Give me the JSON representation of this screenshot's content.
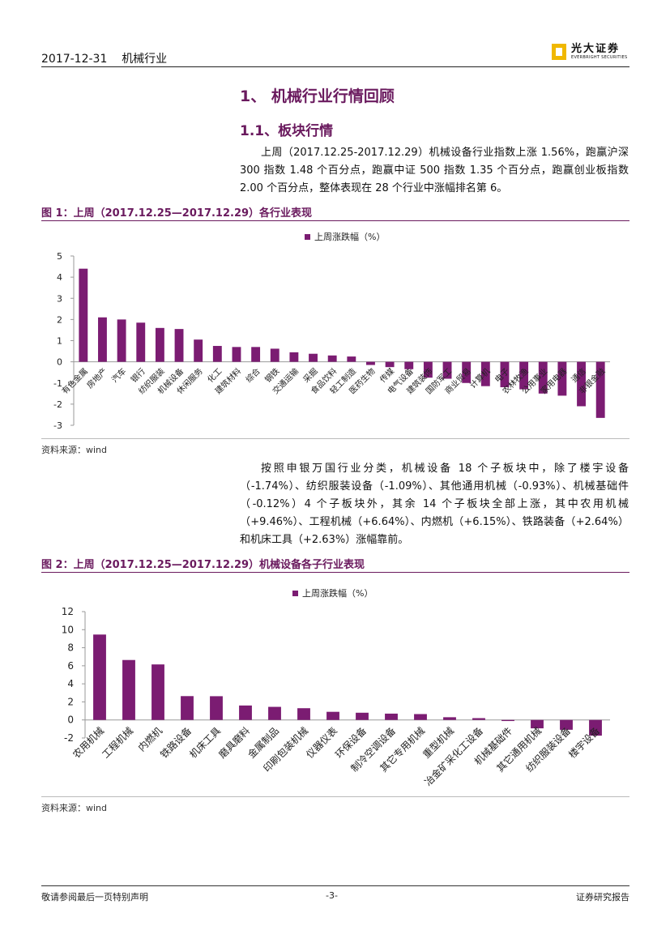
{
  "header": {
    "date": "2017-12-31",
    "industry": "机械行业",
    "logo_cn": "光大证券",
    "logo_en": "EVERBRIGHT SECURITIES"
  },
  "section_title": "1、 机械行业行情回顾",
  "subsection_title": "1.1、板块行情",
  "paragraph1": "上周（2017.12.25-2017.12.29）机械设备行业指数上涨 1.56%，跑赢沪深 300 指数 1.48 个百分点，跑赢中证 500 指数 1.35 个百分点，跑赢创业板指数 2.00 个百分点，整体表现在 28 个行业中涨幅排名第 6。",
  "figure1": {
    "title": "图 1：上周（2017.12.25—2017.12.29）各行业表现",
    "source": "资料来源：wind",
    "chart_data": {
      "type": "bar",
      "series": [
        {
          "name": "上周涨跌幅（%）",
          "color": "#7b1c72"
        }
      ],
      "categories": [
        "有色金属",
        "房地产",
        "汽车",
        "银行",
        "纺织服装",
        "机械设备",
        "休闲服务",
        "化工",
        "建筑材料",
        "综合",
        "钢铁",
        "交通运输",
        "采掘",
        "食品饮料",
        "轻工制造",
        "医药生物",
        "传媒",
        "电气设备",
        "建筑装饰",
        "国防军工",
        "商业贸易",
        "计算机",
        "电子",
        "农林牧渔",
        "公用事业",
        "家用电器",
        "通信",
        "非银金融"
      ],
      "values": [
        4.4,
        2.1,
        2.0,
        1.85,
        1.6,
        1.55,
        1.05,
        0.75,
        0.7,
        0.7,
        0.62,
        0.45,
        0.38,
        0.3,
        0.25,
        -0.15,
        -0.25,
        -0.35,
        -0.75,
        -0.8,
        -1.0,
        -1.15,
        -1.2,
        -1.3,
        -1.5,
        -1.6,
        -2.1,
        -2.65
      ],
      "ylim": [
        -3,
        5
      ],
      "yticks": [
        "-3",
        "-2",
        "-1",
        "0",
        "1",
        "2",
        "3",
        "4",
        "5"
      ]
    }
  },
  "paragraph2": "按照申银万国行业分类，机械设备 18 个子板块中，除了楼宇设备（-1.74%）、纺织服装设备（-1.09%）、其他通用机械（-0.93%）、机械基础件（-0.12%）4 个子板块外，其余 14 个子板块全部上涨，其中农用机械（+9.46%）、工程机械（+6.64%）、内燃机（+6.15%）、铁路装备（+2.64%）和机床工具（+2.63%）涨幅靠前。",
  "figure2": {
    "title": "图 2：上周（2017.12.25—2017.12.29）机械设备各子行业表现",
    "source": "资料来源：wind",
    "chart_data": {
      "type": "bar",
      "series": [
        {
          "name": "上周涨跌幅（%）",
          "color": "#7b1c72"
        }
      ],
      "categories": [
        "农用机械",
        "工程机械",
        "内燃机",
        "铁路设备",
        "机床工具",
        "磨具磨料",
        "金属制品",
        "印刷包装机械",
        "仪器仪表",
        "环保设备",
        "制冷空调设备",
        "其它专用机械",
        "重型机械",
        "冶金矿采化工设备",
        "机械基础件",
        "其它通用机械",
        "纺织服装设备",
        "楼宇设备"
      ],
      "values": [
        9.46,
        6.64,
        6.15,
        2.64,
        2.63,
        1.6,
        1.45,
        1.3,
        0.9,
        0.8,
        0.7,
        0.65,
        0.3,
        0.2,
        -0.12,
        -0.93,
        -1.09,
        -1.74
      ],
      "ylim": [
        -2,
        12
      ],
      "yticks": [
        "-2",
        "0",
        "2",
        "4",
        "6",
        "8",
        "10",
        "12"
      ]
    }
  },
  "footer": {
    "disclaimer": "敬请参阅最后一页特别声明",
    "page": "-3-",
    "report_type": "证券研究报告"
  }
}
